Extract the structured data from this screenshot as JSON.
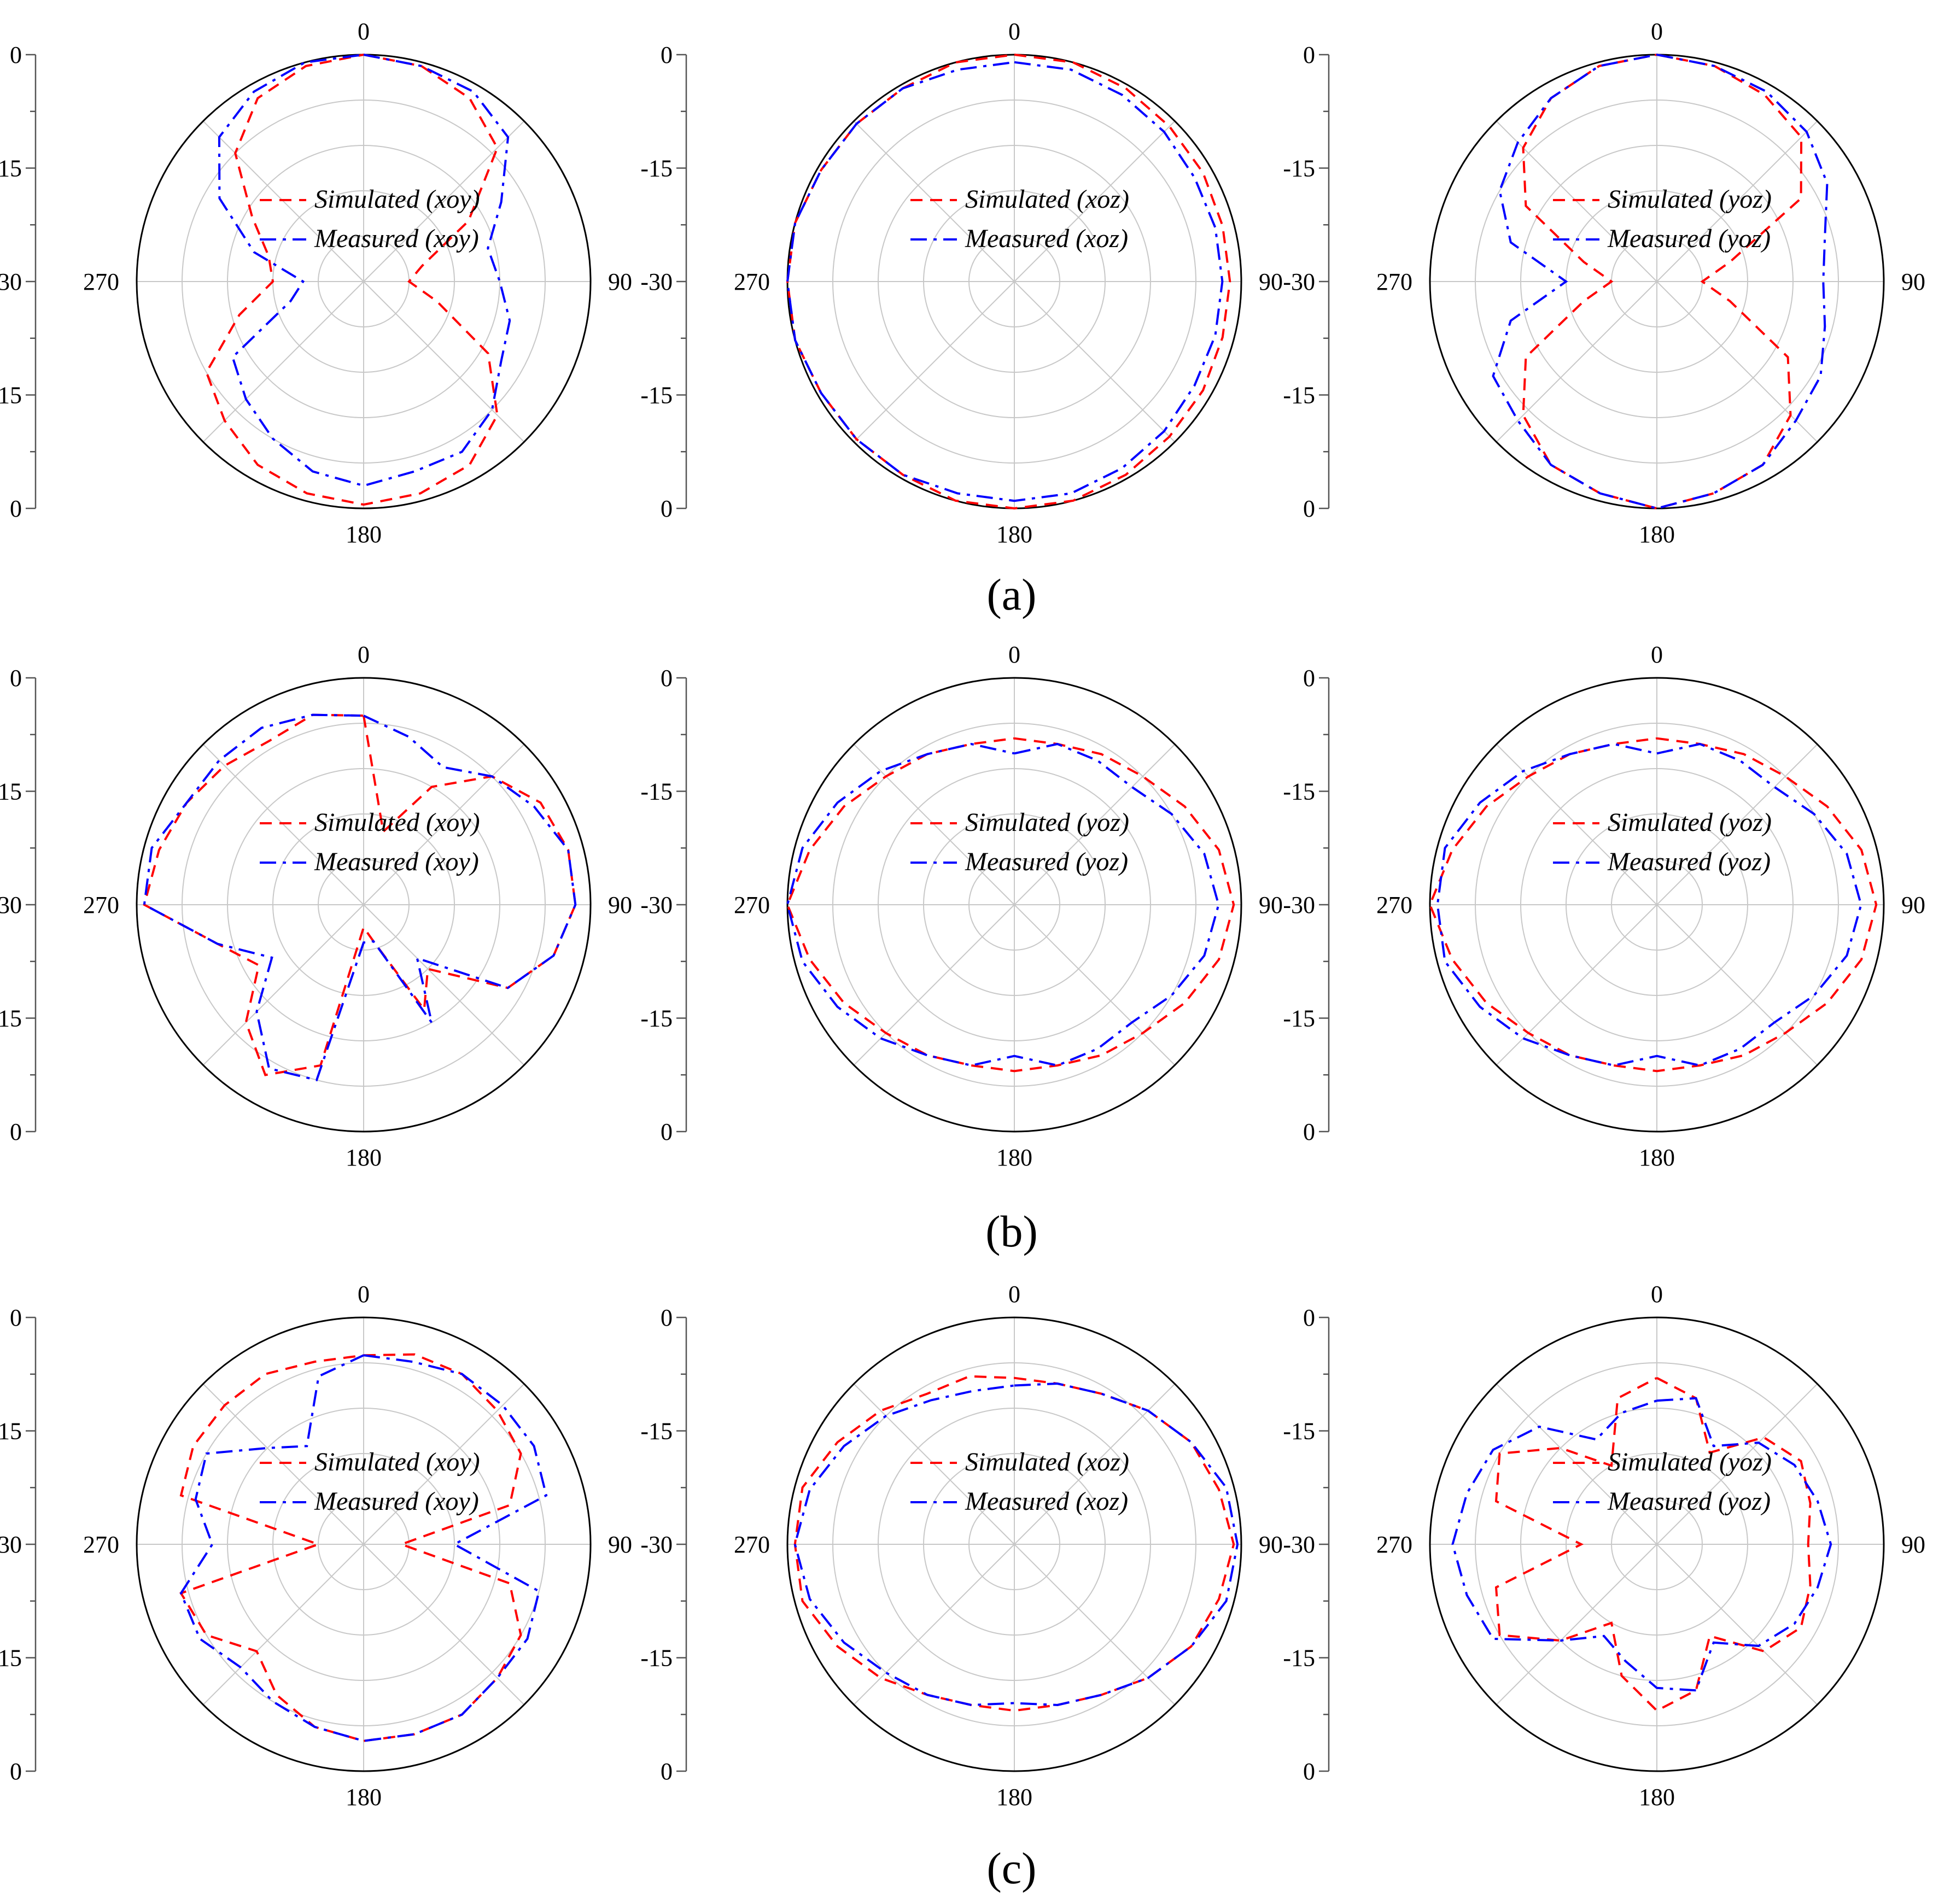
{
  "colors": {
    "simulated": "#ff0000",
    "measured": "#0000ff",
    "grid": "#c8c8c8",
    "outline": "#000000"
  },
  "radial_tick_labels": [
    "0",
    "-15",
    "-30",
    "-15",
    "0"
  ],
  "angle_labels": [
    "0",
    "90",
    "180",
    "270"
  ],
  "captions": [
    "(a)",
    "(b)",
    "(c)"
  ],
  "chart_data": [
    {
      "type": "polar-line",
      "row": "a",
      "col": 0,
      "rlim": [
        -30,
        0
      ],
      "series": [
        {
          "name": "Simulated (xoy)",
          "style": "dashed",
          "angles": [
            0,
            15,
            30,
            45,
            60,
            75,
            90,
            105,
            120,
            135,
            150,
            165,
            180,
            195,
            210,
            225,
            240,
            255,
            270,
            285,
            300,
            315,
            330,
            345
          ],
          "values": [
            0,
            -0.5,
            -2,
            -5,
            -14,
            -22,
            -24,
            -20,
            -11,
            -5,
            -2,
            -1,
            -0.5,
            -1,
            -2,
            -4,
            -6,
            -13,
            -18,
            -17,
            -13,
            -6,
            -2,
            -0.5
          ]
        },
        {
          "name": "Measured (xoy)",
          "style": "dashdot",
          "angles": [
            0,
            15,
            30,
            45,
            60,
            75,
            90,
            105,
            120,
            135,
            150,
            165,
            180,
            195,
            210,
            225,
            240,
            255,
            270,
            285,
            300,
            315,
            330,
            345
          ],
          "values": [
            0,
            -0.5,
            -1,
            -3,
            -9,
            -13,
            -12,
            -10,
            -9,
            -6,
            -4,
            -4,
            -3,
            -4,
            -6,
            -8,
            -10,
            -20,
            -22,
            -15,
            -8,
            -3,
            -1,
            0
          ]
        }
      ]
    },
    {
      "type": "polar-line",
      "row": "a",
      "col": 1,
      "rlim": [
        -30,
        0
      ],
      "series": [
        {
          "name": "Simulated (xoz)",
          "style": "dashed",
          "angles": [
            0,
            15,
            30,
            45,
            60,
            75,
            90,
            105,
            120,
            135,
            150,
            165,
            180,
            195,
            210,
            225,
            240,
            255,
            270,
            285,
            300,
            315,
            330,
            345
          ],
          "values": [
            0,
            0,
            -0.5,
            -1,
            -1.2,
            -1.5,
            -1.5,
            -1.5,
            -1.2,
            -1,
            -0.5,
            0,
            0,
            0,
            -0.5,
            -0.5,
            -0.5,
            0,
            0,
            0,
            -0.5,
            -0.5,
            -0.5,
            0
          ]
        },
        {
          "name": "Measured (xoz)",
          "style": "dashdot",
          "angles": [
            0,
            15,
            30,
            45,
            60,
            75,
            90,
            105,
            120,
            135,
            150,
            165,
            180,
            195,
            210,
            225,
            240,
            255,
            270,
            285,
            300,
            315,
            330,
            345
          ],
          "values": [
            -1,
            -1,
            -1.5,
            -2,
            -2.5,
            -2.5,
            -2.5,
            -2.5,
            -2.5,
            -2,
            -1.5,
            -1,
            -1,
            -1,
            -0.5,
            -0.5,
            -0.5,
            0,
            0,
            0,
            -0.5,
            -0.5,
            -0.5,
            -1
          ]
        }
      ]
    },
    {
      "type": "polar-line",
      "row": "a",
      "col": 2,
      "rlim": [
        -30,
        0
      ],
      "series": [
        {
          "name": "Simulated (yoz)",
          "style": "dashed",
          "angles": [
            0,
            15,
            30,
            45,
            60,
            75,
            90,
            105,
            120,
            135,
            150,
            165,
            180,
            195,
            210,
            225,
            240,
            255,
            270,
            285,
            300,
            315,
            330,
            345
          ],
          "values": [
            0,
            -0.5,
            -1.5,
            -3,
            -8,
            -20,
            -24,
            -20,
            -10,
            -5,
            -2,
            -1,
            0,
            -1,
            -2,
            -5,
            -10,
            -20,
            -24,
            -20,
            -10,
            -5,
            -2,
            -0.5
          ]
        },
        {
          "name": "Measured (yoz)",
          "style": "dashdot",
          "angles": [
            0,
            15,
            30,
            45,
            60,
            75,
            90,
            105,
            120,
            135,
            150,
            165,
            180,
            195,
            210,
            225,
            240,
            255,
            270,
            285,
            300,
            315,
            330,
            345
          ],
          "values": [
            0,
            -0.5,
            -1,
            -2,
            -4,
            -7,
            -8,
            -7,
            -5,
            -4,
            -2,
            -1,
            0,
            -1,
            -2,
            -4,
            -5,
            -10,
            -18,
            -10,
            -6,
            -4,
            -2,
            -0.5
          ]
        }
      ]
    },
    {
      "type": "polar-line",
      "row": "b",
      "col": 0,
      "rlim": [
        -30,
        0
      ],
      "series": [
        {
          "name": "Simulated (xoy)",
          "style": "dashed",
          "angles": [
            0,
            15,
            30,
            45,
            60,
            75,
            90,
            105,
            120,
            135,
            150,
            165,
            180,
            195,
            210,
            225,
            240,
            255,
            270,
            285,
            300,
            315,
            330,
            345
          ],
          "values": [
            -5,
            -20,
            -12,
            -6,
            -3,
            -2,
            -2,
            -4,
            -8,
            -18,
            -14,
            -25,
            -27,
            -8,
            -4,
            -8,
            -14,
            -10,
            -1,
            -2,
            -3,
            -4,
            -5,
            -4
          ]
        },
        {
          "name": "Measured (xoy)",
          "style": "dashdot",
          "angles": [
            0,
            15,
            30,
            45,
            60,
            75,
            90,
            105,
            120,
            135,
            150,
            165,
            180,
            195,
            210,
            225,
            240,
            255,
            270,
            285,
            300,
            315,
            330,
            345
          ],
          "values": [
            -5,
            -7,
            -9,
            -6,
            -4,
            -2,
            -2,
            -4,
            -8,
            -20,
            -12,
            -25,
            -25,
            -6,
            -5,
            -10,
            -16,
            -10,
            -1,
            -1,
            -3,
            -3,
            -3,
            -4
          ]
        }
      ]
    },
    {
      "type": "polar-line",
      "row": "b",
      "col": 1,
      "rlim": [
        -30,
        0
      ],
      "series": [
        {
          "name": "Simulated (yoz)",
          "style": "dashed",
          "angles": [
            0,
            15,
            30,
            45,
            60,
            75,
            90,
            105,
            120,
            135,
            150,
            165,
            180,
            195,
            210,
            225,
            240,
            255,
            270,
            285,
            300,
            315,
            330,
            345
          ],
          "values": [
            -8,
            -8,
            -7,
            -6,
            -4,
            -2,
            -1,
            -2,
            -4,
            -6,
            -7,
            -8,
            -8,
            -8,
            -7,
            -6,
            -4,
            -2,
            0,
            -2,
            -4,
            -6,
            -7,
            -8
          ]
        },
        {
          "name": "Measured (yoz)",
          "style": "dashdot",
          "angles": [
            0,
            15,
            30,
            45,
            60,
            75,
            90,
            105,
            120,
            135,
            150,
            165,
            180,
            195,
            210,
            225,
            240,
            255,
            270,
            285,
            300,
            315,
            330,
            345
          ],
          "values": [
            -10,
            -8,
            -8,
            -8,
            -6,
            -4,
            -3,
            -4,
            -6,
            -8,
            -8,
            -8,
            -10,
            -8,
            -7,
            -5,
            -3,
            -1,
            0,
            -1,
            -3,
            -5,
            -7,
            -8
          ]
        }
      ]
    },
    {
      "type": "polar-line",
      "row": "b",
      "col": 2,
      "rlim": [
        -30,
        0
      ],
      "series": [
        {
          "name": "Simulated (yoz)",
          "style": "dashed",
          "angles": [
            0,
            15,
            30,
            45,
            60,
            75,
            90,
            105,
            120,
            135,
            150,
            165,
            180,
            195,
            210,
            225,
            240,
            255,
            270,
            285,
            300,
            315,
            330,
            345
          ],
          "values": [
            -8,
            -8,
            -7,
            -6,
            -4,
            -2,
            -1,
            -2,
            -4,
            -6,
            -7,
            -8,
            -8,
            -8,
            -7,
            -6,
            -4,
            -2,
            0,
            -2,
            -4,
            -6,
            -7,
            -8
          ]
        },
        {
          "name": "Measured (yoz)",
          "style": "dashdot",
          "angles": [
            0,
            15,
            30,
            45,
            60,
            75,
            90,
            105,
            120,
            135,
            150,
            165,
            180,
            195,
            210,
            225,
            240,
            255,
            270,
            285,
            300,
            315,
            330,
            345
          ],
          "values": [
            -10,
            -8,
            -8,
            -8,
            -6,
            -4,
            -3,
            -4,
            -6,
            -8,
            -8,
            -8,
            -10,
            -8,
            -7,
            -5,
            -3,
            -1,
            -1,
            -1,
            -3,
            -5,
            -7,
            -8
          ]
        }
      ]
    },
    {
      "type": "polar-line",
      "row": "c",
      "col": 0,
      "rlim": [
        -30,
        0
      ],
      "series": [
        {
          "name": "Simulated (xoy)",
          "style": "dashed",
          "angles": [
            0,
            15,
            30,
            45,
            60,
            75,
            90,
            105,
            120,
            135,
            150,
            165,
            180,
            195,
            210,
            225,
            240,
            255,
            270,
            285,
            300,
            315,
            330,
            345
          ],
          "values": [
            -5,
            -4,
            -4,
            -5,
            -6,
            -10,
            -25,
            -10,
            -6,
            -5,
            -4,
            -4,
            -4,
            -5,
            -7,
            -10,
            -6,
            -5,
            -24,
            -5,
            -4,
            -4,
            -4,
            -5
          ]
        },
        {
          "name": "Measured (xoy)",
          "style": "dashdot",
          "angles": [
            0,
            15,
            30,
            45,
            60,
            75,
            90,
            105,
            120,
            135,
            150,
            165,
            180,
            195,
            210,
            225,
            240,
            255,
            270,
            285,
            300,
            315,
            330,
            345
          ],
          "values": [
            -5,
            -5,
            -4,
            -4,
            -4,
            -5,
            -18,
            -6,
            -5,
            -5,
            -4,
            -4,
            -4,
            -5,
            -6,
            -7,
            -5,
            -5,
            -10,
            -7,
            -6,
            -12,
            -15,
            -7
          ]
        }
      ]
    },
    {
      "type": "polar-line",
      "row": "c",
      "col": 1,
      "rlim": [
        -30,
        0
      ],
      "series": [
        {
          "name": "Simulated (xoz)",
          "style": "dashed",
          "angles": [
            0,
            15,
            30,
            45,
            60,
            75,
            90,
            105,
            120,
            135,
            150,
            165,
            180,
            195,
            210,
            225,
            240,
            255,
            270,
            285,
            300,
            315,
            330,
            345
          ],
          "values": [
            -8,
            -8,
            -7,
            -5,
            -3,
            -2,
            -1,
            -2,
            -3,
            -5,
            -7,
            -8,
            -8,
            -8,
            -7,
            -5,
            -3,
            -1,
            -1,
            -1,
            -3,
            -5,
            -7,
            -7
          ]
        },
        {
          "name": "Measured (xoz)",
          "style": "dashdot",
          "angles": [
            0,
            15,
            30,
            45,
            60,
            75,
            90,
            105,
            120,
            135,
            150,
            165,
            180,
            195,
            210,
            225,
            240,
            255,
            270,
            285,
            300,
            315,
            330,
            345
          ],
          "values": [
            -9,
            -8,
            -7,
            -5,
            -3,
            -1,
            -0.5,
            -1,
            -3,
            -5,
            -7,
            -8,
            -9,
            -8,
            -7,
            -6,
            -4,
            -2,
            -1,
            -2,
            -4,
            -6,
            -8,
            -9
          ]
        }
      ]
    },
    {
      "type": "polar-line",
      "row": "c",
      "col": 2,
      "rlim": [
        -30,
        0
      ],
      "series": [
        {
          "name": "Simulated (yoz)",
          "style": "dashed",
          "angles": [
            0,
            15,
            30,
            45,
            60,
            75,
            90,
            105,
            120,
            135,
            150,
            165,
            180,
            195,
            210,
            225,
            240,
            255,
            270,
            285,
            300,
            315,
            330,
            345
          ],
          "values": [
            -8,
            -10,
            -16,
            -10,
            -8,
            -9,
            -10,
            -9,
            -8,
            -10,
            -16,
            -10,
            -8,
            -12,
            -18,
            -12,
            -6,
            -8,
            -20,
            -8,
            -6,
            -12,
            -18,
            -10
          ]
        },
        {
          "name": "Measured (yoz)",
          "style": "dashdot",
          "angles": [
            0,
            15,
            30,
            45,
            60,
            75,
            90,
            105,
            120,
            135,
            150,
            165,
            180,
            195,
            210,
            225,
            240,
            255,
            270,
            285,
            300,
            315,
            330,
            345
          ],
          "values": [
            -11,
            -10,
            -15,
            -11,
            -9,
            -8,
            -7,
            -8,
            -9,
            -11,
            -15,
            -10,
            -11,
            -14,
            -16,
            -12,
            -5,
            -4,
            -3,
            -4,
            -5,
            -8,
            -14,
            -12
          ]
        }
      ]
    }
  ]
}
